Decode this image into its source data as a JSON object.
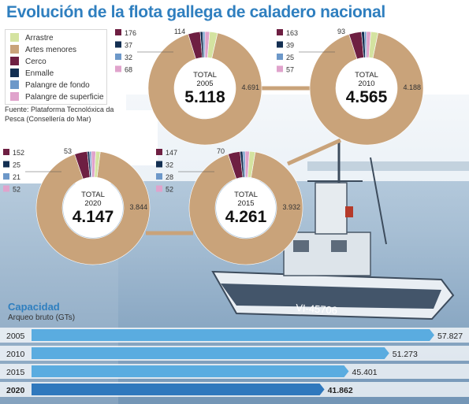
{
  "title": "Evolución de la flota gallega de caladero nacional",
  "source": "Fuente: Plataforma Tecnolóxica da Pesca (Consellería do Mar)",
  "colors": {
    "title": "#2f7fbf",
    "Arrastre": "#d4e3a0",
    "Artes menores": "#c9a37a",
    "Cerco": "#6e1f42",
    "Enmalle": "#132f52",
    "Palangre de fondo": "#6d98c9",
    "Palangre de superficie": "#e0a3cc",
    "bar": "#5aace0",
    "bar_highlight": "#2f78bd"
  },
  "chart_data": [
    {
      "type": "pie",
      "donut": true,
      "legend": [
        "Arrastre",
        "Artes menores",
        "Cerco",
        "Enmalle",
        "Palangre de fondo",
        "Palangre de superficie"
      ],
      "charts": [
        {
          "label": "TOTAL",
          "year": "2005",
          "total": "5.118",
          "values": {
            "Arrastre": 114,
            "Artes menores": 4691,
            "Cerco": 176,
            "Enmalle": 37,
            "Palangre de fondo": 32,
            "Palangre de superficie": 68
          },
          "labels": {
            "Arrastre": "114",
            "Artes menores": "4.691",
            "Cerco": "176",
            "Enmalle": "37",
            "Palangre de fondo": "32",
            "Palangre de superficie": "68"
          }
        },
        {
          "label": "TOTAL",
          "year": "2010",
          "total": "4.565",
          "values": {
            "Arrastre": 93,
            "Artes menores": 4188,
            "Cerco": 163,
            "Enmalle": 39,
            "Palangre de fondo": 25,
            "Palangre de superficie": 57
          },
          "labels": {
            "Arrastre": "93",
            "Artes menores": "4.188",
            "Cerco": "163",
            "Enmalle": "39",
            "Palangre de fondo": "25",
            "Palangre de superficie": "57"
          }
        },
        {
          "label": "TOTAL",
          "year": "2020",
          "total": "4.147",
          "values": {
            "Arrastre": 53,
            "Artes menores": 3844,
            "Cerco": 152,
            "Enmalle": 25,
            "Palangre de fondo": 21,
            "Palangre de superficie": 52
          },
          "labels": {
            "Arrastre": "53",
            "Artes menores": "3.844",
            "Cerco": "152",
            "Enmalle": "25",
            "Palangre de fondo": "21",
            "Palangre de superficie": "52"
          }
        },
        {
          "label": "TOTAL",
          "year": "2015",
          "total": "4.261",
          "values": {
            "Arrastre": 70,
            "Artes menores": 3932,
            "Cerco": 147,
            "Enmalle": 32,
            "Palangre de fondo": 28,
            "Palangre de superficie": 52
          },
          "labels": {
            "Arrastre": "70",
            "Artes menores": "3.932",
            "Cerco": "147",
            "Enmalle": "32",
            "Palangre de fondo": "28",
            "Palangre de superficie": "52"
          }
        }
      ]
    },
    {
      "type": "bar",
      "orientation": "horizontal",
      "title": "Capacidad",
      "subtitle": "Arqueo bruto (GTs)",
      "categories": [
        "2005",
        "2010",
        "2015",
        "2020"
      ],
      "values": [
        57827,
        51273,
        45401,
        41862
      ],
      "labels": [
        "57.827",
        "51.273",
        "45.401",
        "41.862"
      ],
      "highlight": "2020"
    }
  ]
}
